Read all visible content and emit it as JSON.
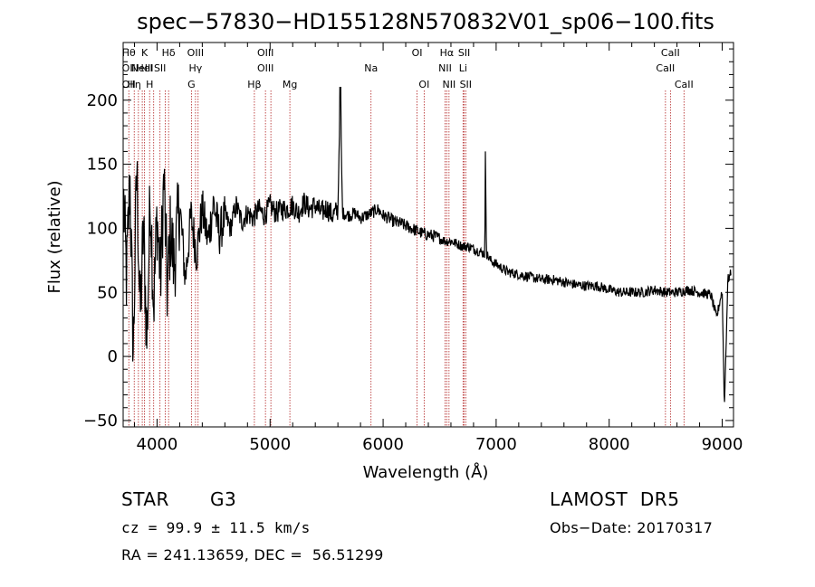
{
  "chart_data": {
    "type": "line",
    "title": "spec−57830−HD155128N570832V01_sp06−100.fits",
    "xlabel": "Wavelength (Å)",
    "ylabel": "Flux (relative)",
    "xlim": [
      3700,
      9100
    ],
    "ylim": [
      -55,
      245
    ],
    "xticks": [
      4000,
      5000,
      6000,
      7000,
      8000,
      9000
    ],
    "yticks": [
      -50,
      0,
      50,
      100,
      150,
      200
    ],
    "ytick_labels": [
      "−50",
      "0",
      "50",
      "100",
      "150",
      "200"
    ],
    "minor_x_step": 200,
    "minor_y_step": 10,
    "grid": false,
    "line_color": "#000000",
    "marker_color": "#b22222",
    "series": [
      {
        "x": [
          3705,
          3730,
          3760,
          3790,
          3820,
          3850,
          3880,
          3910,
          3940,
          3970,
          4000,
          4030,
          4060,
          4090,
          4120,
          4150,
          4200,
          4250,
          4300,
          4350,
          4400,
          4450,
          4500,
          4550,
          4600,
          4650,
          4700,
          4750,
          4800,
          4850,
          4900,
          4950,
          5000,
          5050,
          5100,
          5150,
          5200,
          5250,
          5300,
          5350,
          5400,
          5450,
          5500,
          5550,
          5600,
          5620,
          5640,
          5700,
          5750,
          5800,
          5850,
          5900,
          5950,
          6000,
          6050,
          6100,
          6150,
          6200,
          6250,
          6300,
          6350,
          6400,
          6450,
          6500,
          6550,
          6600,
          6650,
          6700,
          6750,
          6800,
          6850,
          6900,
          6905,
          6915,
          6950,
          7000,
          7100,
          7200,
          7300,
          7400,
          7500,
          7600,
          7700,
          7800,
          7900,
          8000,
          8100,
          8200,
          8300,
          8400,
          8500,
          8600,
          8700,
          8800,
          8900,
          8950,
          9000,
          9020,
          9050,
          9080
        ],
        "y": [
          120,
          60,
          140,
          0,
          150,
          30,
          100,
          10,
          130,
          40,
          110,
          60,
          140,
          50,
          100,
          70,
          120,
          60,
          110,
          80,
          115,
          90,
          120,
          95,
          110,
          100,
          118,
          105,
          112,
          108,
          115,
          110,
          118,
          112,
          115,
          115,
          118,
          112,
          120,
          115,
          118,
          112,
          116,
          110,
          114,
          210,
          112,
          110,
          112,
          108,
          110,
          112,
          115,
          110,
          108,
          105,
          104,
          102,
          100,
          98,
          96,
          95,
          94,
          92,
          90,
          90,
          88,
          86,
          86,
          84,
          82,
          80,
          160,
          80,
          75,
          72,
          66,
          64,
          62,
          60,
          60,
          58,
          56,
          55,
          55,
          52,
          50,
          50,
          50,
          52,
          50,
          50,
          52,
          50,
          48,
          30,
          52,
          -40,
          60,
          65
        ]
      }
    ],
    "line_markers": [
      {
        "wl": 3750,
        "rows": [
          {
            "label": "Hθ",
            "row": 0
          },
          {
            "label": "OII",
            "row": 1
          },
          {
            "label": "OII",
            "row": 2
          }
        ]
      },
      {
        "wl": 3798,
        "rows": [
          {
            "label": "Hη",
            "row": 2
          }
        ]
      },
      {
        "wl": 3835,
        "rows": []
      },
      {
        "wl": 3869,
        "rows": [
          {
            "label": "NeIII",
            "row": 1
          }
        ]
      },
      {
        "wl": 3889,
        "rows": [
          {
            "label": "K",
            "row": 0
          },
          {
            "label": "HeI",
            "row": 1
          }
        ]
      },
      {
        "wl": 3934,
        "rows": [
          {
            "label": "H",
            "row": 2
          }
        ]
      },
      {
        "wl": 3970,
        "rows": []
      },
      {
        "wl": 4026,
        "rows": [
          {
            "label": "SII",
            "row": 1
          }
        ]
      },
      {
        "wl": 4072,
        "rows": []
      },
      {
        "wl": 4102,
        "rows": [
          {
            "label": "Hδ",
            "row": 0
          }
        ]
      },
      {
        "wl": 4304,
        "rows": [
          {
            "label": "G",
            "row": 2
          }
        ]
      },
      {
        "wl": 4340,
        "rows": [
          {
            "label": "OIII",
            "row": 0
          },
          {
            "label": "Hγ",
            "row": 1
          }
        ]
      },
      {
        "wl": 4363,
        "rows": []
      },
      {
        "wl": 4861,
        "rows": [
          {
            "label": "Hβ",
            "row": 2
          }
        ]
      },
      {
        "wl": 4959,
        "rows": [
          {
            "label": "OIII",
            "row": 0
          },
          {
            "label": "OIII",
            "row": 1
          }
        ]
      },
      {
        "wl": 5007,
        "rows": []
      },
      {
        "wl": 5175,
        "rows": [
          {
            "label": "Mg",
            "row": 2
          }
        ]
      },
      {
        "wl": 5893,
        "rows": [
          {
            "label": "Na",
            "row": 1
          }
        ]
      },
      {
        "wl": 6300,
        "rows": [
          {
            "label": "OI",
            "row": 0
          }
        ]
      },
      {
        "wl": 6363,
        "rows": [
          {
            "label": "OI",
            "row": 2
          }
        ]
      },
      {
        "wl": 6548,
        "rows": [
          {
            "label": "NII",
            "row": 1
          }
        ]
      },
      {
        "wl": 6563,
        "rows": [
          {
            "label": "Hα",
            "row": 0
          }
        ]
      },
      {
        "wl": 6583,
        "rows": [
          {
            "label": "NII",
            "row": 2
          }
        ]
      },
      {
        "wl": 6707,
        "rows": [
          {
            "label": "Li",
            "row": 1
          }
        ]
      },
      {
        "wl": 6717,
        "rows": [
          {
            "label": "SII",
            "row": 0
          }
        ]
      },
      {
        "wl": 6731,
        "rows": [
          {
            "label": "SII",
            "row": 2
          }
        ]
      },
      {
        "wl": 8498,
        "rows": [
          {
            "label": "CaII",
            "row": 1
          }
        ]
      },
      {
        "wl": 8542,
        "rows": [
          {
            "label": "CaII",
            "row": 0
          }
        ]
      },
      {
        "wl": 8662,
        "rows": [
          {
            "label": "CaII",
            "row": 2
          }
        ]
      }
    ]
  },
  "info": {
    "object_class": "STAR",
    "subclass": "G3",
    "survey": "LAMOST  DR5",
    "redshift": "cz = 99.9 ± 11.5 km/s",
    "obs_date": "Obs−Date: 20170317",
    "coords": "RA = 241.13659, DEC =  56.51299"
  }
}
